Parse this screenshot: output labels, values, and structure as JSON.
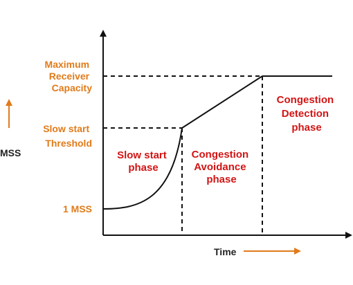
{
  "y_labels": {
    "max_receiver_lines": [
      "Maximum",
      "Receiver",
      "Capacity"
    ],
    "slow_start_threshold_lines": [
      "Slow start",
      "Threshold"
    ],
    "one_mss": "1 MSS",
    "axis_unit": "MSS"
  },
  "x_label": "Time",
  "phases": {
    "slow_start_lines": [
      "Slow start",
      "phase"
    ],
    "congestion_avoidance_lines": [
      "Congestion",
      "Avoidance",
      "phase"
    ],
    "congestion_detection_lines": [
      "Congestion",
      "Detection",
      "phase"
    ]
  },
  "colors": {
    "orange": "#E07B1A",
    "red": "#D21414",
    "line": "#111111"
  }
}
